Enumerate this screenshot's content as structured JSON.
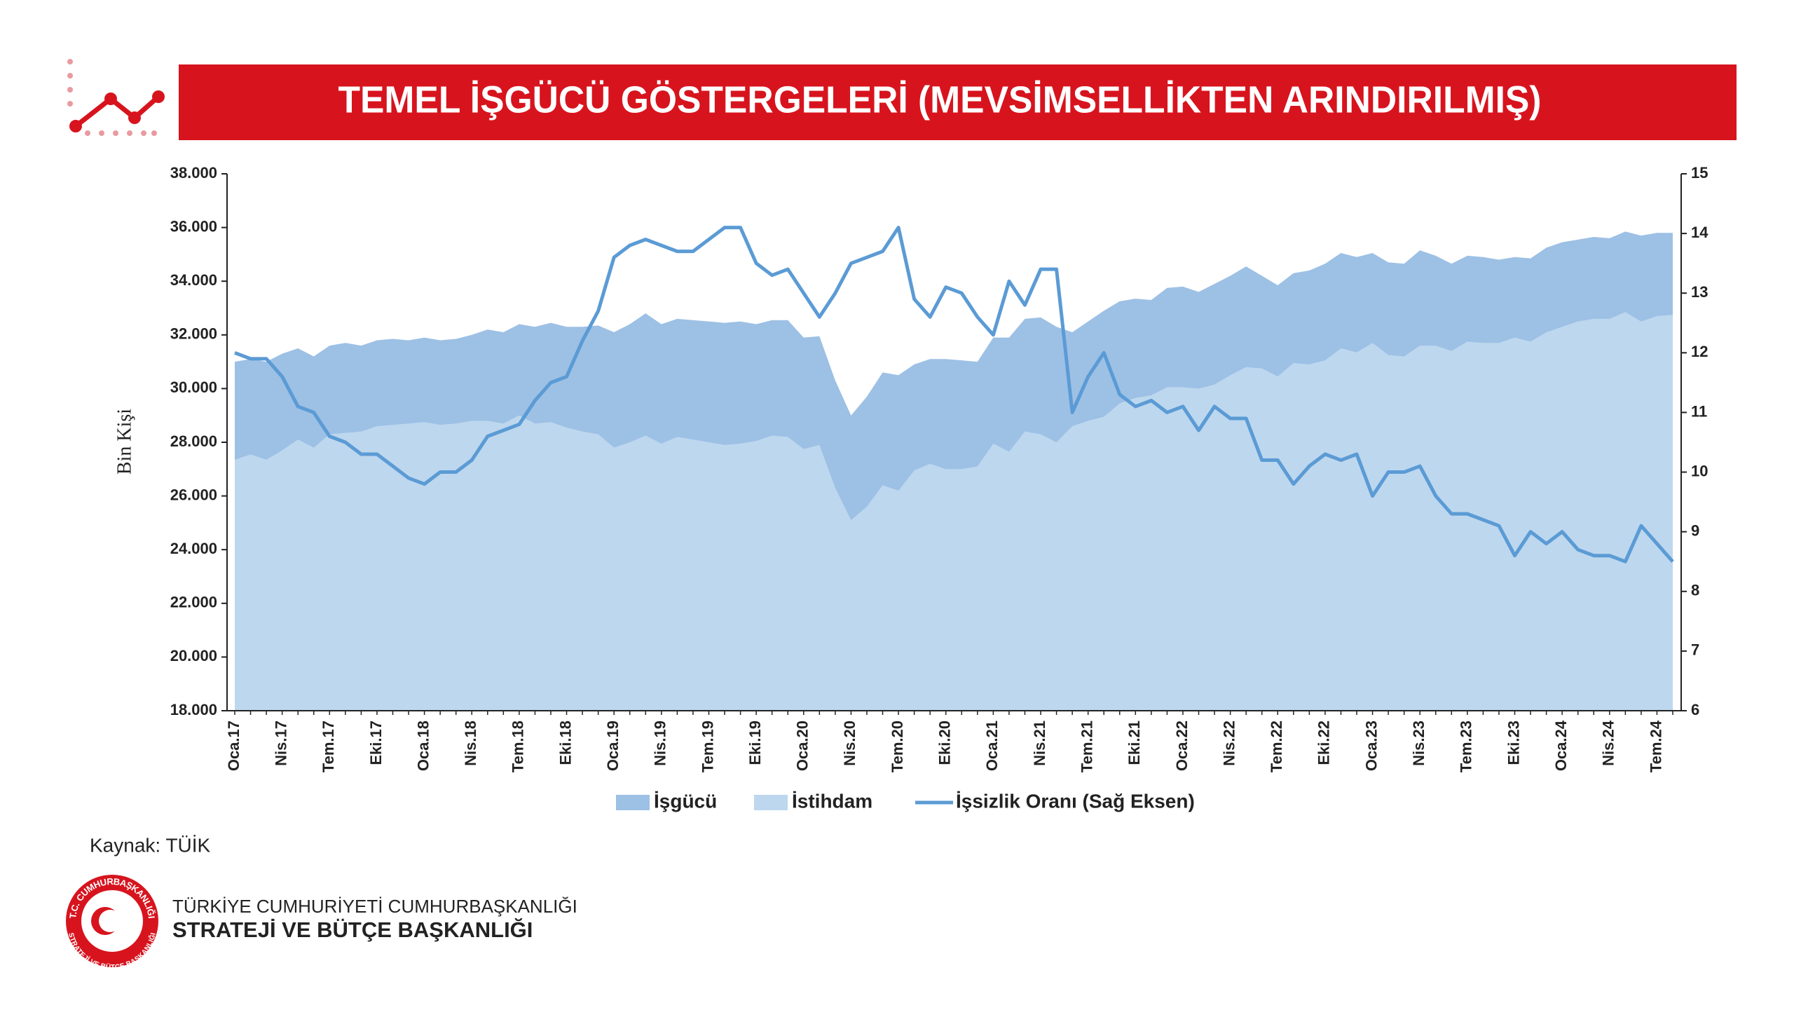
{
  "chart_data": {
    "type": "area_line",
    "title": "TEMEL İŞGÜCÜ GÖSTERGELERİ (MEVSİMSELLİKTEN ARINDIRILMIŞ)",
    "ylabel": "Bin Kişi",
    "source": "Kaynak: TÜİK",
    "categories": [
      "Oca.17",
      null,
      null,
      "Nis.17",
      null,
      null,
      "Tem.17",
      null,
      null,
      "Eki.17",
      null,
      null,
      "Oca.18",
      null,
      null,
      "Nis.18",
      null,
      null,
      "Tem.18",
      null,
      null,
      "Eki.18",
      null,
      null,
      "Oca.19",
      null,
      null,
      "Nis.19",
      null,
      null,
      "Tem.19",
      null,
      null,
      "Eki.19",
      null,
      null,
      "Oca.20",
      null,
      null,
      "Nis.20",
      null,
      null,
      "Tem.20",
      null,
      null,
      "Eki.20",
      null,
      null,
      "Oca.21",
      null,
      null,
      "Nis.21",
      null,
      null,
      "Tem.21",
      null,
      null,
      "Eki.21",
      null,
      null,
      "Oca.22",
      null,
      null,
      "Nis.22",
      null,
      null,
      "Tem.22",
      null,
      null,
      "Eki.22",
      null,
      null,
      "Oca.23",
      null,
      null,
      "Nis.23",
      null,
      null,
      "Tem.23",
      null,
      null,
      "Eki.23",
      null,
      null,
      "Oca.24",
      null,
      null,
      "Nis.24",
      null,
      null,
      "Tem.24",
      null
    ],
    "series": [
      {
        "name": "İşgücü",
        "color": "#9dc0e5",
        "kind": "area",
        "values": [
          31000,
          31100,
          31000,
          31300,
          31500,
          31200,
          31600,
          31700,
          31600,
          31800,
          31850,
          31800,
          31900,
          31800,
          31850,
          32000,
          32200,
          32100,
          32400,
          32300,
          32450,
          32300,
          32300,
          32350,
          32100,
          32400,
          32800,
          32400,
          32600,
          32550,
          32500,
          32450,
          32500,
          32400,
          32550,
          32550,
          31900,
          31950,
          30300,
          29000,
          29700,
          30600,
          30500,
          30900,
          31100,
          31100,
          31050,
          31000,
          31900,
          31900,
          32600,
          32650,
          32300,
          32100,
          32500,
          32900,
          33250,
          33350,
          33300,
          33750,
          33800,
          33600,
          33900,
          34200,
          34550,
          34200,
          33850,
          34300,
          34400,
          34650,
          35050,
          34900,
          35050,
          34700,
          34650,
          35150,
          34950,
          34650,
          34950,
          34900,
          34800,
          34900,
          34850,
          35250,
          35450,
          35550,
          35650,
          35600,
          35850,
          35700,
          35800,
          35800
        ]
      },
      {
        "name": "İstihdam",
        "color": "#bdd7ee",
        "kind": "area",
        "values": [
          27350,
          27550,
          27350,
          27700,
          28100,
          27800,
          28300,
          28350,
          28400,
          28600,
          28650,
          28700,
          28750,
          28650,
          28700,
          28800,
          28800,
          28700,
          29000,
          28700,
          28750,
          28550,
          28400,
          28300,
          27800,
          28000,
          28250,
          27950,
          28200,
          28100,
          28000,
          27900,
          27950,
          28050,
          28250,
          28200,
          27750,
          27900,
          26300,
          25100,
          25600,
          26400,
          26200,
          26950,
          27200,
          27000,
          27000,
          27100,
          27950,
          27650,
          28400,
          28300,
          28000,
          28600,
          28800,
          28950,
          29450,
          29650,
          29750,
          30050,
          30050,
          30000,
          30150,
          30500,
          30800,
          30750,
          30450,
          30950,
          30900,
          31050,
          31500,
          31350,
          31700,
          31250,
          31200,
          31600,
          31600,
          31400,
          31750,
          31700,
          31700,
          31900,
          31750,
          32100,
          32300,
          32500,
          32600,
          32600,
          32850,
          32500,
          32700,
          32750
        ]
      },
      {
        "name": "İşsizlik Oranı (Sağ Eksen)",
        "color": "#5b9bd5",
        "kind": "line",
        "axis": "y2",
        "values": [
          12.0,
          11.9,
          11.9,
          11.6,
          11.1,
          11.0,
          10.6,
          10.5,
          10.3,
          10.3,
          10.1,
          9.9,
          9.8,
          10.0,
          10.0,
          10.2,
          10.6,
          10.7,
          10.8,
          11.2,
          11.5,
          11.6,
          12.2,
          12.7,
          13.6,
          13.8,
          13.9,
          13.8,
          13.7,
          13.7,
          13.9,
          14.1,
          14.1,
          13.5,
          13.3,
          13.4,
          13.0,
          12.6,
          13.0,
          13.5,
          13.6,
          13.7,
          14.1,
          12.9,
          12.6,
          13.1,
          13.0,
          12.6,
          12.3,
          13.2,
          12.8,
          13.4,
          13.4,
          11.0,
          11.6,
          12.0,
          11.3,
          11.1,
          11.2,
          11.0,
          11.1,
          10.7,
          11.1,
          10.9,
          10.9,
          10.2,
          10.2,
          9.8,
          10.1,
          10.3,
          10.2,
          10.3,
          9.6,
          10.0,
          10.0,
          10.1,
          9.6,
          9.3,
          9.3,
          9.2,
          9.1,
          8.6,
          9.0,
          8.8,
          9.0,
          8.7,
          8.6,
          8.6,
          8.5,
          9.1,
          8.8,
          8.5
        ]
      }
    ],
    "ylim": [
      18000,
      38000
    ],
    "yticks": [
      {
        "value": 18000,
        "label": "18.000"
      },
      {
        "value": 20000,
        "label": "20.000"
      },
      {
        "value": 22000,
        "label": "22.000"
      },
      {
        "value": 24000,
        "label": "24.000"
      },
      {
        "value": 26000,
        "label": "26.000"
      },
      {
        "value": 28000,
        "label": "28.000"
      },
      {
        "value": 30000,
        "label": "30.000"
      },
      {
        "value": 32000,
        "label": "32.000"
      },
      {
        "value": 34000,
        "label": "34.000"
      },
      {
        "value": 36000,
        "label": "36.000"
      },
      {
        "value": 38000,
        "label": "38.000"
      }
    ],
    "y2lim": [
      6,
      15
    ],
    "y2ticks": [
      6,
      7,
      8,
      9,
      10,
      11,
      12,
      13,
      14,
      15
    ],
    "grid": false,
    "legend": "bottom"
  },
  "footer": {
    "logo_ring_top": "T.C. CUMHURBAŞKANLIĞI",
    "logo_ring_bottom": "STRATEJİ VE BÜTÇE BAŞKANLIĞI",
    "line1": "TÜRKİYE CUMHURİYETİ CUMHURBAŞKANLIĞI",
    "line2": "STRATEJİ VE BÜTÇE BAŞKANLIĞI"
  }
}
